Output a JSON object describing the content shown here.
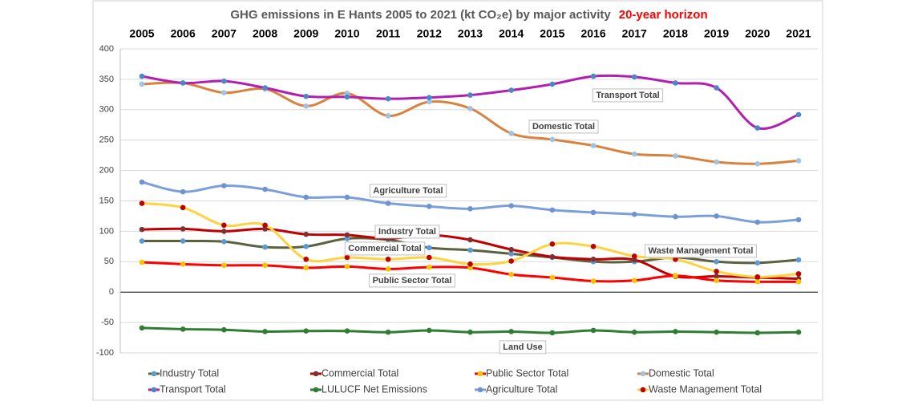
{
  "chart_data": {
    "type": "line",
    "title": "GHG emissions in E Hants 2005 to 2021 (kt CO₂e) by major activity",
    "subtitle": "20-year horizon",
    "categories": [
      "2005",
      "2006",
      "2007",
      "2008",
      "2009",
      "2010",
      "2011",
      "2012",
      "2013",
      "2014",
      "2015",
      "2016",
      "2017",
      "2018",
      "2019",
      "2020",
      "2021"
    ],
    "ylim": [
      -100,
      400
    ],
    "yticks": [
      -100,
      -50,
      0,
      50,
      100,
      150,
      200,
      250,
      300,
      350,
      400
    ],
    "grid": true,
    "legend": "bottom",
    "series": [
      {
        "name": "Industry Total",
        "color": "#5b623f",
        "marker_color": "#5b9bd5",
        "values": [
          84,
          84,
          83,
          74,
          75,
          88,
          86,
          73,
          69,
          63,
          57,
          50,
          50,
          57,
          50,
          48,
          53
        ]
      },
      {
        "name": "Commercial Total",
        "color": "#c00000",
        "marker_color": "#7f3030",
        "values": [
          103,
          104,
          100,
          104,
          95,
          94,
          88,
          94,
          86,
          70,
          58,
          54,
          53,
          26,
          26,
          24,
          22
        ]
      },
      {
        "name": "Public Sector Total",
        "color": "#ff0000",
        "marker_color": "#ffc000",
        "values": [
          49,
          46,
          44,
          44,
          40,
          42,
          38,
          41,
          40,
          29,
          24,
          18,
          19,
          27,
          19,
          17,
          17
        ]
      },
      {
        "name": "Domestic Total",
        "color": "#d9823e",
        "marker_color": "#9dc3e6",
        "values": [
          342,
          344,
          328,
          334,
          306,
          327,
          290,
          313,
          302,
          261,
          251,
          241,
          227,
          224,
          214,
          211,
          216
        ]
      },
      {
        "name": "Transport Total",
        "color": "#b01fb0",
        "marker_color": "#4a86c8",
        "values": [
          355,
          344,
          347,
          336,
          322,
          321,
          318,
          320,
          324,
          332,
          342,
          355,
          354,
          344,
          336,
          270,
          292
        ]
      },
      {
        "name": "LULUCF Net Emissions",
        "color": "#2e7d32",
        "marker_color": "#2e7d32",
        "values": [
          -59,
          -61,
          -62,
          -65,
          -64,
          -64,
          -66,
          -63,
          -66,
          -65,
          -67,
          -63,
          -66,
          -65,
          -66,
          -67,
          -66
        ]
      },
      {
        "name": "Agriculture Total",
        "color": "#7b9fd9",
        "marker_color": "#6f93d0",
        "values": [
          181,
          165,
          175,
          169,
          156,
          156,
          146,
          141,
          137,
          142,
          135,
          131,
          128,
          124,
          125,
          115,
          119
        ]
      },
      {
        "name": "Waste Management Total",
        "color": "#ffd23f",
        "marker_color": "#c00000",
        "values": [
          146,
          139,
          110,
          110,
          54,
          57,
          54,
          57,
          46,
          51,
          79,
          75,
          59,
          54,
          34,
          25,
          30
        ]
      }
    ],
    "annotations": [
      "Transport Total",
      "Domestic Total",
      "Agriculture Total",
      "Industry Total",
      "Commercial Total",
      "Public Sector Total",
      "Waste Management Total",
      "Land Use"
    ]
  }
}
